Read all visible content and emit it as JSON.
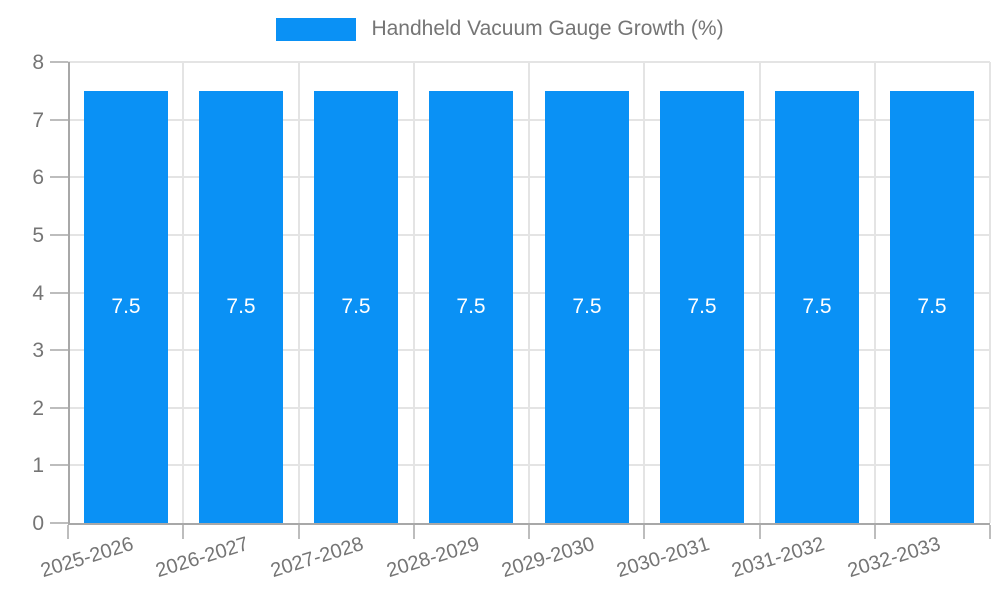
{
  "legend": {
    "label": "Handheld Vacuum Gauge Growth (%)"
  },
  "chart_data": {
    "type": "bar",
    "title": "Handheld Vacuum Gauge Growth (%)",
    "categories": [
      "2025-2026",
      "2026-2027",
      "2027-2028",
      "2028-2029",
      "2029-2030",
      "2030-2031",
      "2031-2032",
      "2032-2033"
    ],
    "series": [
      {
        "name": "Handheld Vacuum Gauge Growth (%)",
        "values": [
          7.5,
          7.5,
          7.5,
          7.5,
          7.5,
          7.5,
          7.5,
          7.5
        ]
      }
    ],
    "bar_value_labels": [
      "7.5",
      "7.5",
      "7.5",
      "7.5",
      "7.5",
      "7.5",
      "7.5",
      "7.5"
    ],
    "xlabel": "",
    "ylabel": "",
    "ylim": [
      0,
      8
    ],
    "yticks": [
      0,
      1,
      2,
      3,
      4,
      5,
      6,
      7,
      8
    ],
    "grid": true,
    "legend_position": "top-center",
    "x_tick_rotation_deg": -17,
    "colors": {
      "bar": "#0a91f5",
      "bar_label": "#ffffff",
      "axis": "#a8a8a8",
      "tick": "#bdbdbd",
      "gridline": "#e4e4e4",
      "text": "#757575",
      "background": "#ffffff"
    }
  }
}
